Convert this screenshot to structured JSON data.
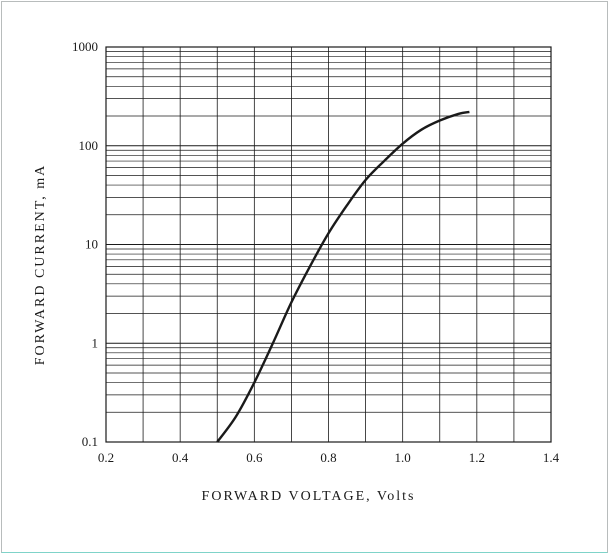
{
  "chart_data": {
    "type": "line",
    "title": "",
    "xlabel": "FORWARD VOLTAGE, Volts",
    "ylabel": "FORWARD CURRENT, mA",
    "xlim": [
      0.2,
      1.4
    ],
    "ylim": [
      0.1,
      1000
    ],
    "y_scale": "log",
    "grid": true,
    "legend": "none",
    "x_ticks": [
      "0.2",
      "0.4",
      "0.6",
      "0.8",
      "1.0",
      "1.2",
      "1.4"
    ],
    "y_ticks": [
      "0.1",
      "1",
      "10",
      "100",
      "1000"
    ],
    "series": [
      {
        "x": [
          0.5,
          0.55,
          0.6,
          0.65,
          0.7,
          0.75,
          0.8,
          0.85,
          0.9,
          0.95,
          1.0,
          1.05,
          1.1,
          1.15,
          1.18
        ],
        "y": [
          0.1,
          0.18,
          0.4,
          1.0,
          2.6,
          6.0,
          13,
          25,
          45,
          70,
          105,
          145,
          180,
          210,
          220
        ],
        "color": "#1a1a1a"
      }
    ]
  }
}
